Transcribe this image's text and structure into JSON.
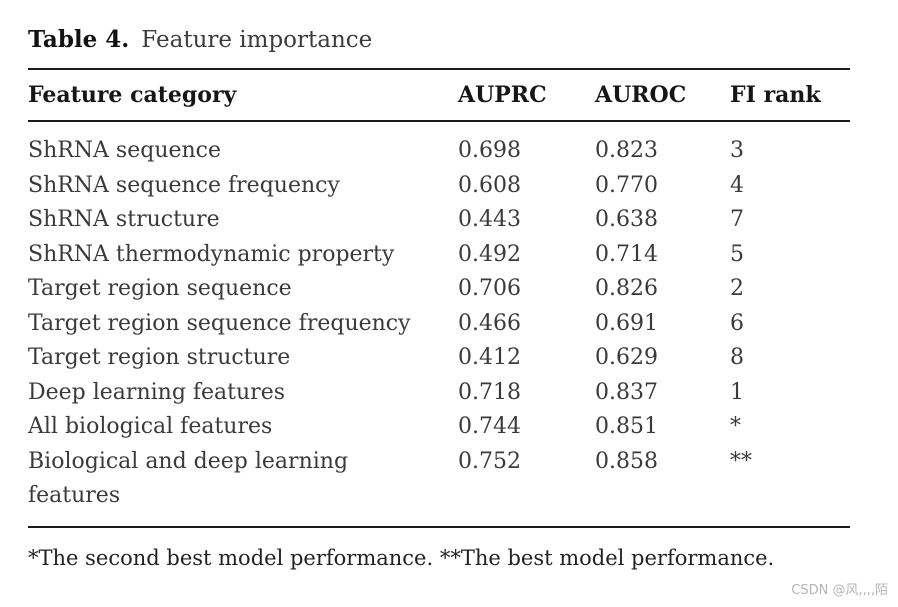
{
  "title": {
    "label": "Table 4.",
    "text": "Feature importance"
  },
  "table": {
    "columns": [
      "Feature category",
      "AUPRC",
      "AUROC",
      "FI rank"
    ],
    "rows": [
      {
        "category": "ShRNA sequence",
        "auprc": "0.698",
        "auroc": "0.823",
        "fi_rank": "3"
      },
      {
        "category": "ShRNA sequence frequency",
        "auprc": "0.608",
        "auroc": "0.770",
        "fi_rank": "4"
      },
      {
        "category": "ShRNA structure",
        "auprc": "0.443",
        "auroc": "0.638",
        "fi_rank": "7"
      },
      {
        "category": "ShRNA thermodynamic property",
        "auprc": "0.492",
        "auroc": "0.714",
        "fi_rank": "5"
      },
      {
        "category": "Target region sequence",
        "auprc": "0.706",
        "auroc": "0.826",
        "fi_rank": "2"
      },
      {
        "category": "Target region sequence frequency",
        "auprc": "0.466",
        "auroc": "0.691",
        "fi_rank": "6"
      },
      {
        "category": "Target region structure",
        "auprc": "0.412",
        "auroc": "0.629",
        "fi_rank": "8"
      },
      {
        "category": "Deep learning features",
        "auprc": "0.718",
        "auroc": "0.837",
        "fi_rank": "1"
      },
      {
        "category": "All biological features",
        "auprc": "0.744",
        "auroc": "0.851",
        "fi_rank": "*"
      },
      {
        "category": "Biological and deep learning features",
        "auprc": "0.752",
        "auroc": "0.858",
        "fi_rank": "**"
      }
    ]
  },
  "footnote": {
    "text": "*The second best model performance. **The best model performance."
  },
  "watermark": {
    "text": "CSDN @风,,,,陌"
  }
}
